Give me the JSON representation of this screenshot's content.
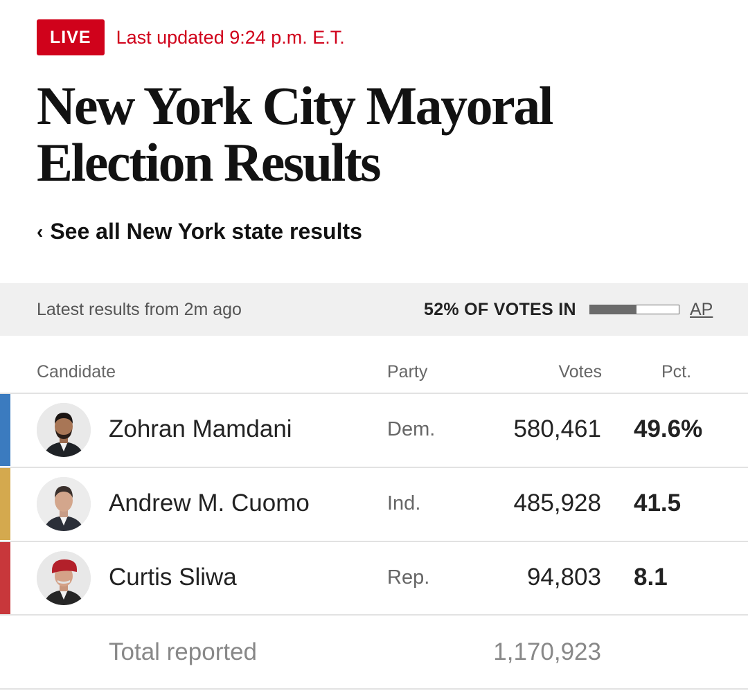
{
  "header": {
    "live_badge": "LIVE",
    "last_updated": "Last updated 9:24 p.m. E.T.",
    "title": "New York City Mayoral Election Results",
    "back_link": "See all New York state results"
  },
  "status": {
    "latest": "Latest results from 2m ago",
    "votes_in": "52% OF VOTES IN",
    "votes_in_fraction": 0.52,
    "source": "AP"
  },
  "table": {
    "headers": {
      "candidate": "Candidate",
      "party": "Party",
      "votes": "Votes",
      "pct": "Pct."
    },
    "rows": [
      {
        "name": "Zohran Mamdani",
        "party": "Dem.",
        "votes": "580,461",
        "pct": "49.6%",
        "color": "#3b7bbf"
      },
      {
        "name": "Andrew M. Cuomo",
        "party": "Ind.",
        "votes": "485,928",
        "pct": "41.5",
        "color": "#d4a94e"
      },
      {
        "name": "Curtis Sliwa",
        "party": "Rep.",
        "votes": "94,803",
        "pct": "8.1",
        "color": "#c8373b"
      }
    ],
    "total_label": "Total reported",
    "total_votes": "1,170,923"
  },
  "colors": {
    "live": "#d0021b",
    "dem": "#3b7bbf",
    "ind": "#d4a94e",
    "rep": "#c8373b"
  }
}
